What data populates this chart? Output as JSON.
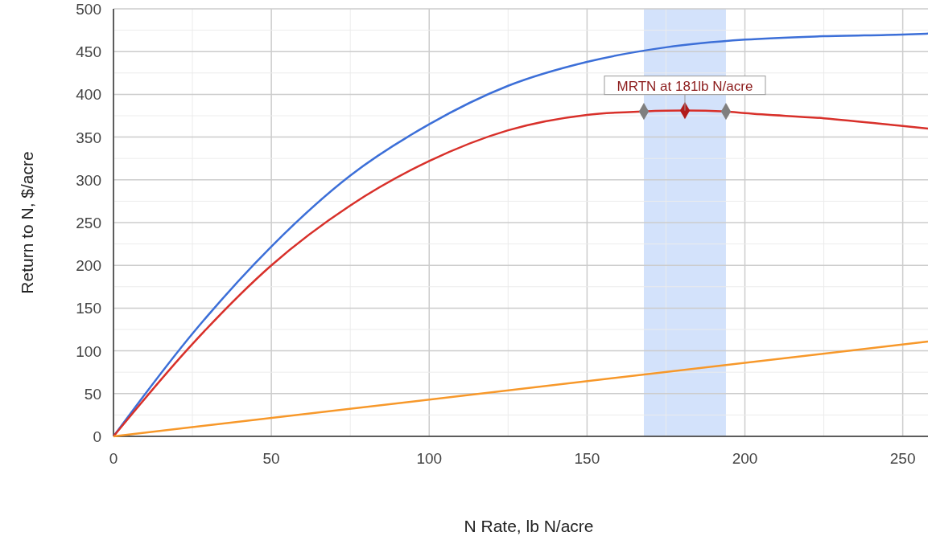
{
  "chart_data": {
    "type": "line",
    "xlabel": "N Rate, lb N/acre",
    "ylabel": "Return to N, $/acre",
    "xlim": [
      0,
      258
    ],
    "ylim": [
      0,
      500
    ],
    "xticks": [
      0,
      {
        "value": 25,
        "label": null
      },
      50,
      {
        "value": 75,
        "label": null
      },
      100,
      {
        "value": 125,
        "label": null
      },
      150,
      {
        "value": 175,
        "label": null
      },
      200,
      {
        "value": 225,
        "label": null
      },
      250
    ],
    "yticks": [
      0,
      {
        "value": 25,
        "label": null
      },
      50,
      {
        "value": 75,
        "label": null
      },
      100,
      {
        "value": 125,
        "label": null
      },
      150,
      {
        "value": 175,
        "label": null
      },
      200,
      {
        "value": 225,
        "label": null
      },
      250,
      {
        "value": 275,
        "label": null
      },
      300,
      {
        "value": 325,
        "label": null
      },
      350,
      {
        "value": 375,
        "label": null
      },
      400,
      {
        "value": 425,
        "label": null
      },
      450,
      {
        "value": 475,
        "label": null
      },
      500
    ],
    "grid": true,
    "line_style": "solid",
    "series": [
      {
        "color": "#3c6fd8",
        "x": [
          0,
          25,
          50,
          75,
          100,
          125,
          150,
          175,
          200,
          225,
          250,
          258
        ],
        "values": [
          0,
          120,
          222,
          305,
          365,
          410,
          438,
          455,
          464,
          468,
          470,
          471
        ]
      },
      {
        "color": "#d8302a",
        "x": [
          0,
          25,
          50,
          75,
          100,
          125,
          150,
          168,
          181,
          194,
          200,
          225,
          250,
          258
        ],
        "values": [
          0,
          108,
          200,
          270,
          322,
          358,
          376,
          380,
          381,
          380,
          378,
          372,
          363,
          360
        ]
      },
      {
        "color": "#f7982a",
        "x": [
          0,
          258
        ],
        "values": [
          0,
          111
        ]
      },
      {
        "type": "scatter",
        "marker": "diamond",
        "colors": [
          "#7f7f7f",
          "#b21b1b",
          "#7f7f7f"
        ],
        "x": [
          168,
          181,
          194
        ],
        "values": [
          380,
          381,
          380
        ]
      }
    ],
    "bands": [
      {
        "axis": "x",
        "from": 168,
        "to": 194,
        "color": "#d3e2fb"
      }
    ],
    "annotations": [
      {
        "text": "MRTN at 181lb N/acre",
        "x": 181,
        "y": 381
      }
    ]
  }
}
